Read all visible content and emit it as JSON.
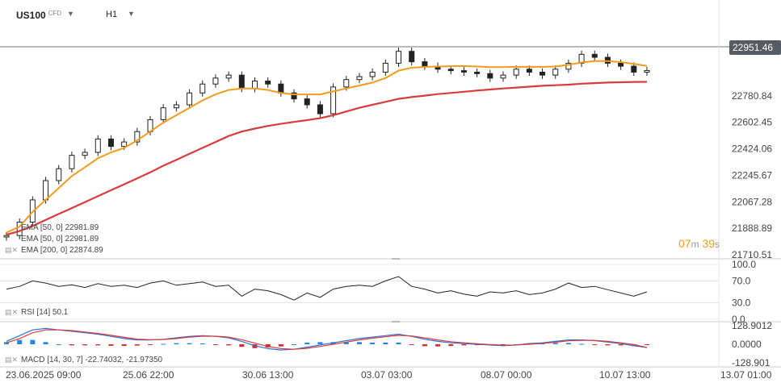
{
  "header": {
    "symbol": "US100",
    "instrument_type": "CFD",
    "timeframe": "H1"
  },
  "current_price": "22951.46",
  "countdown": {
    "minutes": "07",
    "m_label": "m",
    "seconds": "39",
    "s_label": "s"
  },
  "colors": {
    "price_candle": "#222222",
    "ema50": "#f29b1d",
    "ema200": "#d93b3b",
    "rsi_line": "#222222",
    "macd_line": "#2f6fd6",
    "signal_line": "#d93b3b",
    "hist_pos": "#1e88e5",
    "hist_neg": "#d32f2f",
    "price_tag_bg": "#555a63",
    "gridline": "#d8d8d8"
  },
  "legend": {
    "ema_a": "EMA [50, 0] 22981.89",
    "ema_b": "EMA [50, 0] 22981.89",
    "ema_200": "EMA [200, 0] 22874.89",
    "rsi": "RSI [14] 50.1",
    "macd": "MACD [14, 30, 7] -22.74032, -21.97350"
  },
  "icons": [
    "chevron-down-icon",
    "indicator-settings-icon",
    "close-icon"
  ],
  "chart_data": [
    {
      "type": "line",
      "panel": "price",
      "ylim": [
        21710.51,
        23100
      ],
      "y_ticks": [
        "22780.84",
        "22602.45",
        "22424.06",
        "22245.67",
        "22067.28",
        "21888.89",
        "21710.51"
      ],
      "x_ticks": [
        "23.06.2025 09:00",
        "25.06 22:00",
        "30.06 13:00",
        "03.07 03:00",
        "08.07 00:00",
        "10.07 13:00",
        "13.07 01:00"
      ],
      "series": [
        {
          "role": "price",
          "values": [
            21840,
            21930,
            22080,
            22210,
            22290,
            22380,
            22400,
            22490,
            22440,
            22470,
            22540,
            22620,
            22700,
            22720,
            22800,
            22860,
            22900,
            22920,
            22830,
            22880,
            22860,
            22800,
            22760,
            22720,
            22660,
            22840,
            22890,
            22910,
            22940,
            23000,
            23080,
            23010,
            22980,
            22960,
            22950,
            22940,
            22930,
            22900,
            22920,
            22960,
            22940,
            22920,
            22960,
            23000,
            23060,
            23040,
            23000,
            22980,
            22940,
            22951
          ]
        },
        {
          "role": "ema50",
          "values": [
            21860,
            21900,
            22000,
            22080,
            22160,
            22240,
            22300,
            22360,
            22400,
            22430,
            22480,
            22540,
            22600,
            22650,
            22700,
            22750,
            22790,
            22820,
            22830,
            22830,
            22820,
            22800,
            22790,
            22790,
            22790,
            22810,
            22830,
            22850,
            22870,
            22900,
            22950,
            22970,
            22975,
            22978,
            22980,
            22981,
            22978,
            22974,
            22974,
            22975,
            22976,
            22975,
            22978,
            22990,
            23005,
            23015,
            23015,
            23008,
            22995,
            22982
          ]
        },
        {
          "role": "ema200",
          "values": [
            21845,
            21870,
            21905,
            21945,
            21985,
            22025,
            22065,
            22105,
            22145,
            22185,
            22225,
            22265,
            22310,
            22350,
            22390,
            22430,
            22470,
            22510,
            22540,
            22560,
            22578,
            22592,
            22605,
            22617,
            22630,
            22650,
            22675,
            22700,
            22720,
            22740,
            22760,
            22772,
            22782,
            22792,
            22800,
            22808,
            22816,
            22823,
            22830,
            22836,
            22842,
            22848,
            22852,
            22856,
            22862,
            22866,
            22870,
            22872,
            22874,
            22875
          ]
        }
      ]
    },
    {
      "type": "line",
      "panel": "rsi",
      "ylim": [
        0,
        100
      ],
      "y_ticks": [
        "100.0",
        "70.0",
        "30.0",
        "0.0"
      ],
      "series": [
        {
          "role": "rsi",
          "values": [
            55,
            60,
            70,
            66,
            60,
            63,
            58,
            65,
            60,
            62,
            58,
            66,
            70,
            62,
            65,
            68,
            60,
            62,
            42,
            55,
            52,
            45,
            35,
            48,
            40,
            55,
            60,
            62,
            60,
            70,
            78,
            60,
            55,
            48,
            52,
            46,
            42,
            50,
            48,
            52,
            45,
            48,
            55,
            66,
            58,
            60,
            54,
            48,
            42,
            50
          ]
        }
      ]
    },
    {
      "type": "bar",
      "panel": "macd",
      "ylim": [
        -128.901,
        128.9012
      ],
      "y_ticks": [
        "128.9012",
        "0.0000",
        "-128.901"
      ],
      "series": [
        {
          "role": "macd",
          "values": [
            20,
            60,
            100,
            110,
            100,
            90,
            80,
            70,
            55,
            40,
            30,
            30,
            35,
            45,
            55,
            60,
            55,
            45,
            20,
            -10,
            -30,
            -40,
            -35,
            -20,
            -5,
            10,
            25,
            40,
            50,
            60,
            70,
            55,
            35,
            20,
            10,
            5,
            0,
            -5,
            -10,
            -5,
            5,
            10,
            20,
            30,
            30,
            25,
            15,
            5,
            -10,
            -22.74
          ]
        },
        {
          "role": "signal",
          "values": [
            10,
            40,
            80,
            100,
            100,
            95,
            85,
            75,
            62,
            48,
            36,
            32,
            33,
            40,
            50,
            56,
            56,
            50,
            32,
            8,
            -15,
            -30,
            -35,
            -28,
            -15,
            0,
            15,
            30,
            42,
            52,
            62,
            58,
            44,
            30,
            18,
            10,
            4,
            -2,
            -6,
            -5,
            0,
            6,
            14,
            24,
            28,
            27,
            20,
            10,
            -2,
            -21.97
          ]
        }
      ]
    }
  ]
}
